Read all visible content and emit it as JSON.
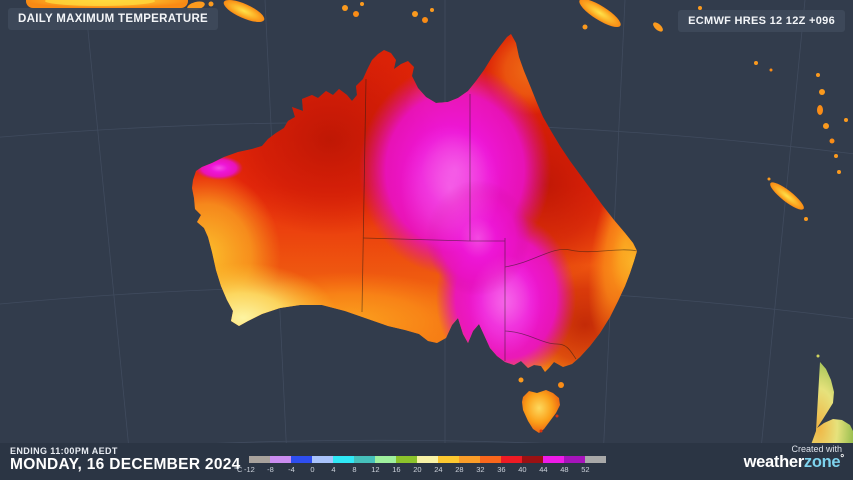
{
  "header": {
    "title": "DAILY MAXIMUM TEMPERATURE",
    "model_run": "ECMWF HRES 12 12Z +096"
  },
  "footer": {
    "ending_label": "ENDING 11:00PM AEDT",
    "date_label": "MONDAY, 16 DECEMBER 2024",
    "credit": "Created with",
    "brand_weather": "weather",
    "brand_zone": "zone",
    "brand_degree": "°"
  },
  "legend": {
    "unit": "°C",
    "stops": [
      {
        "label": "-12",
        "color": "#a8a29c"
      },
      {
        "label": "-8",
        "color": "#cb8df0"
      },
      {
        "label": "-4",
        "color": "#2e4ef0"
      },
      {
        "label": "0",
        "color": "#a9c3fb"
      },
      {
        "label": "4",
        "color": "#30e8f6"
      },
      {
        "label": "8",
        "color": "#46c0bb"
      },
      {
        "label": "12",
        "color": "#9ff09e"
      },
      {
        "label": "16",
        "color": "#8cc32b"
      },
      {
        "label": "20",
        "color": "#f8f3a6"
      },
      {
        "label": "24",
        "color": "#fcc830"
      },
      {
        "label": "28",
        "color": "#fa9d28"
      },
      {
        "label": "32",
        "color": "#f9671c"
      },
      {
        "label": "36",
        "color": "#ee1b24"
      },
      {
        "label": "40",
        "color": "#9b1113"
      },
      {
        "label": "44",
        "color": "#ee1ce8"
      },
      {
        "label": "48",
        "color": "#a714bb"
      },
      {
        "label": "52",
        "color": "#a8a8a8"
      }
    ]
  },
  "colors": {
    "ocean": "#323c4c",
    "panel": "#2b3544",
    "badge": "#3e4a5a",
    "brand_accent": "#7ed3ee",
    "hot_magenta": "#ee16d8",
    "hot_red": "#e82a0b"
  }
}
